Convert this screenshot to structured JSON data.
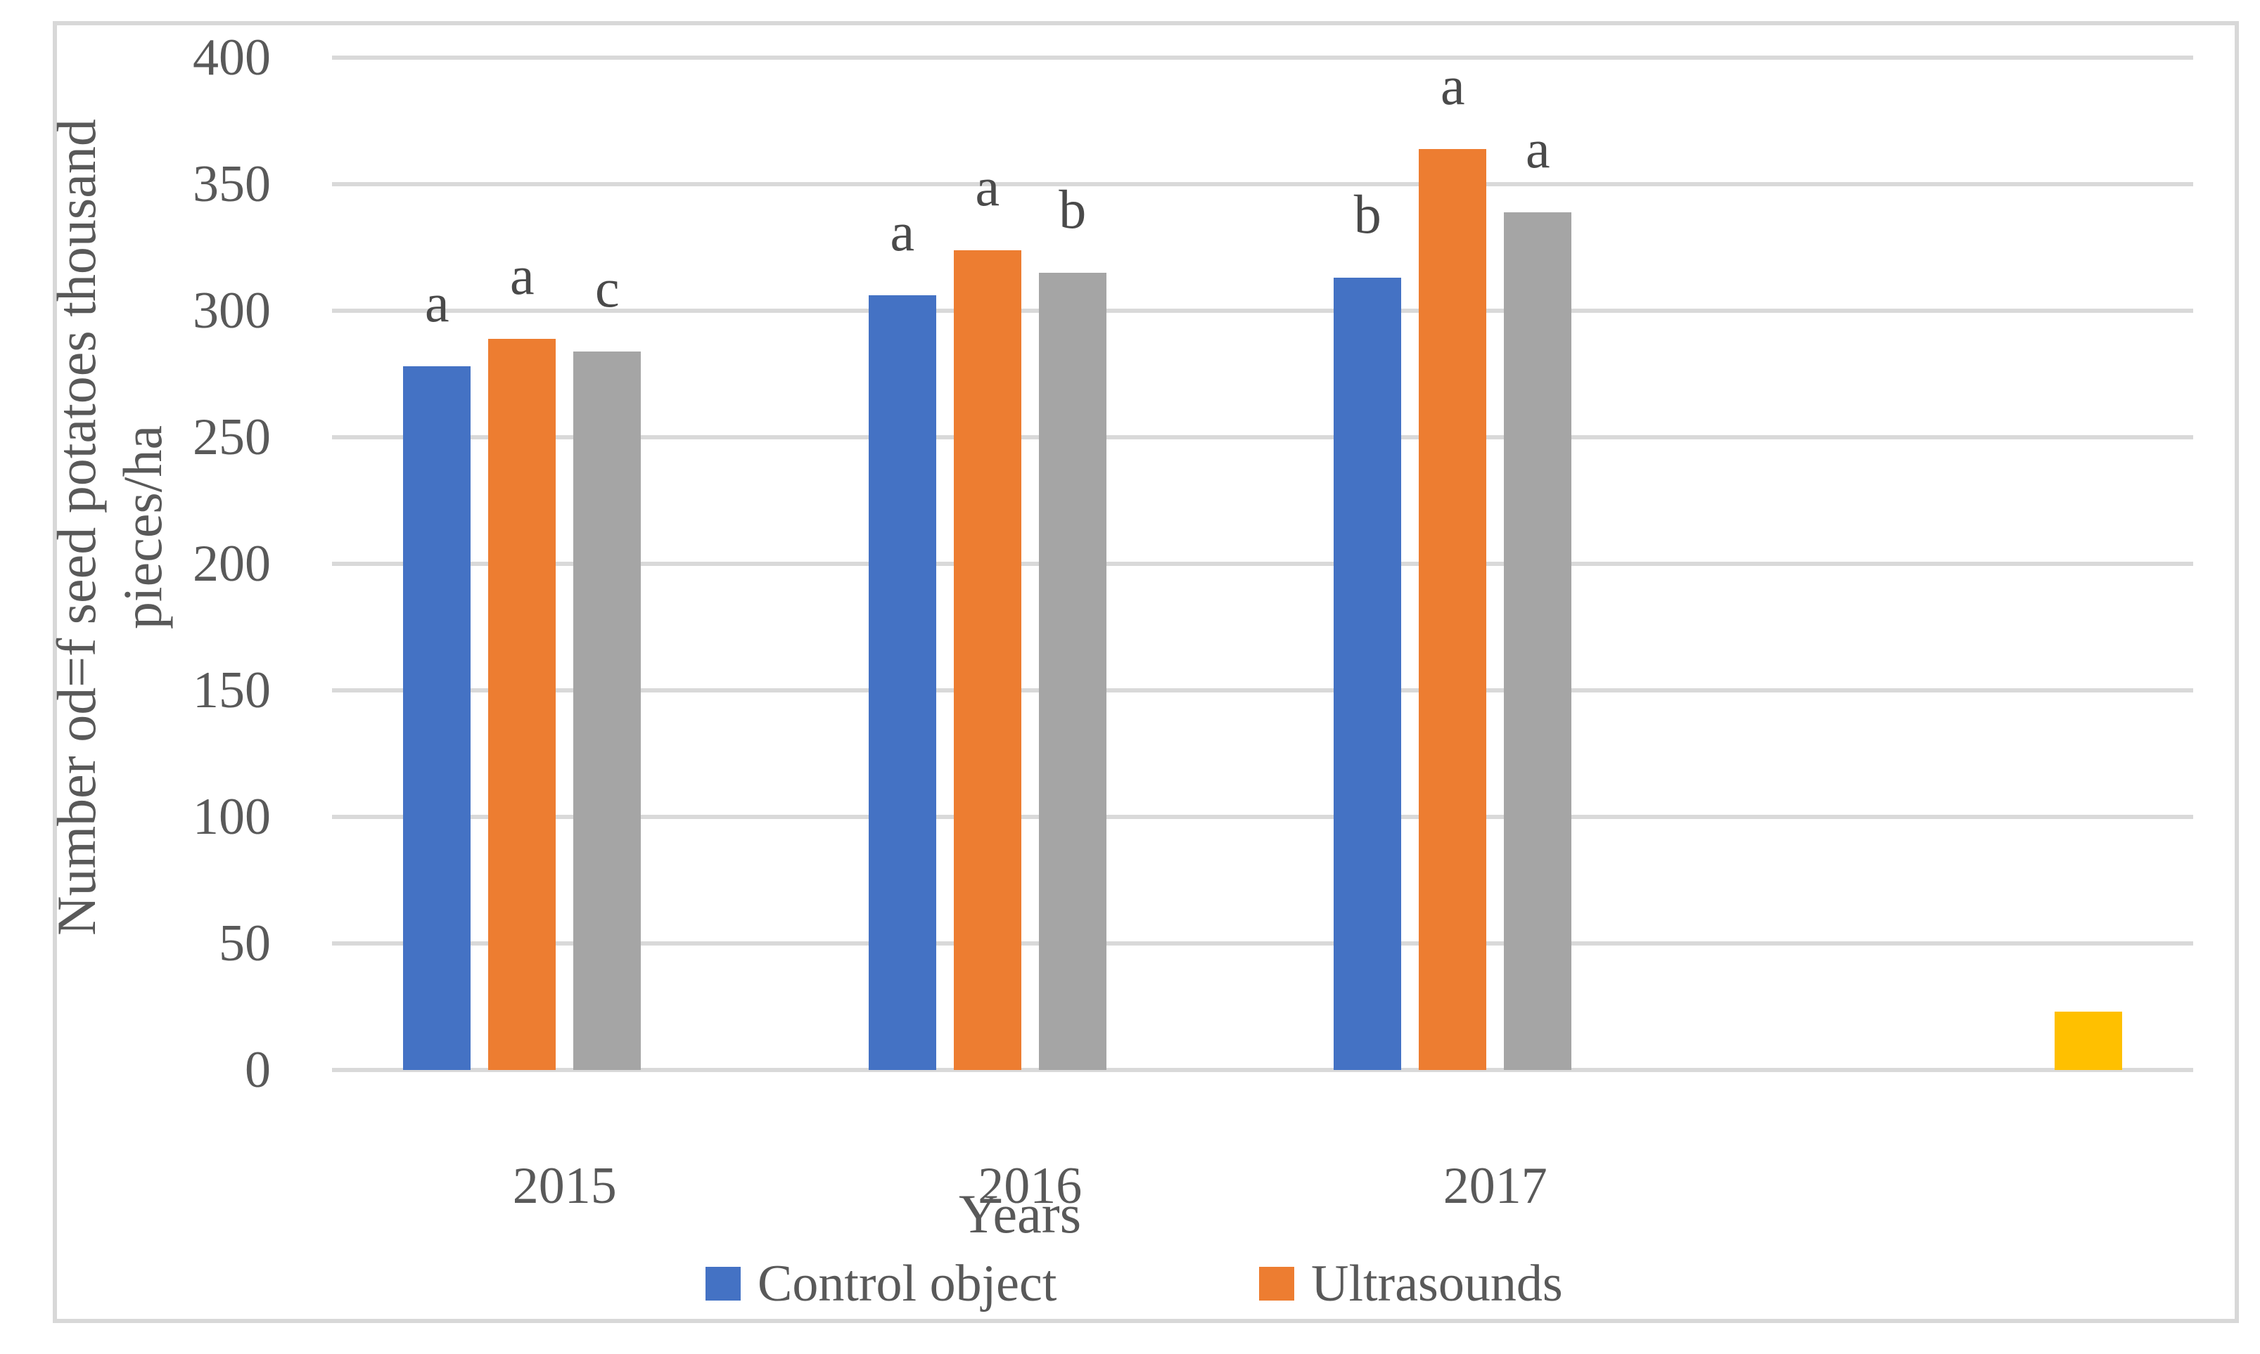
{
  "figure": {
    "y_axis": {
      "title_line1": "Number od=f seed potatoes thousand",
      "title_line2": "pieces/ha",
      "ticks": [
        0,
        50,
        100,
        150,
        200,
        250,
        300,
        350,
        400
      ]
    },
    "x_axis": {
      "title": "Years",
      "categories": [
        "2015",
        "2016",
        "2017",
        ""
      ]
    },
    "legend": [
      {
        "label": "Control object",
        "color": "#4472C4"
      },
      {
        "label": "Ultrasounds",
        "color": "#ED7D31"
      }
    ]
  },
  "chart_data": {
    "type": "bar",
    "title": "",
    "xlabel": "Years",
    "ylabel": "Number od=f seed potatoes thousand pieces/ha",
    "ylim": [
      0,
      400
    ],
    "ytick_step": 50,
    "grid": true,
    "legend_position": "bottom",
    "categories": [
      "2015",
      "2016",
      "2017",
      ""
    ],
    "series": [
      {
        "name": "Control object",
        "slug": "control-object",
        "color": "#4472C4",
        "values": [
          278,
          306,
          313,
          null
        ],
        "letters": [
          "a",
          "a",
          "b",
          null
        ]
      },
      {
        "name": "Ultrasounds",
        "slug": "ultrasounds",
        "color": "#ED7D31",
        "values": [
          289,
          324,
          364,
          null
        ],
        "letters": [
          "a",
          "a",
          "a",
          null
        ]
      },
      {
        "name": "",
        "slug": "series-3-gray",
        "color": "#A5A5A5",
        "values": [
          284,
          315,
          339,
          null
        ],
        "letters": [
          "c",
          "b",
          "a",
          null
        ]
      },
      {
        "name": "",
        "slug": "series-4-yellow",
        "color": "#FFC000",
        "values": [
          null,
          null,
          null,
          23
        ],
        "letters": [
          null,
          null,
          null,
          null
        ]
      }
    ]
  },
  "colors": {
    "gridline": "#d9d9d9",
    "figure_border": "#d8d8d8",
    "axis_text": "#595959",
    "letter_text": "#4a4a4a"
  }
}
